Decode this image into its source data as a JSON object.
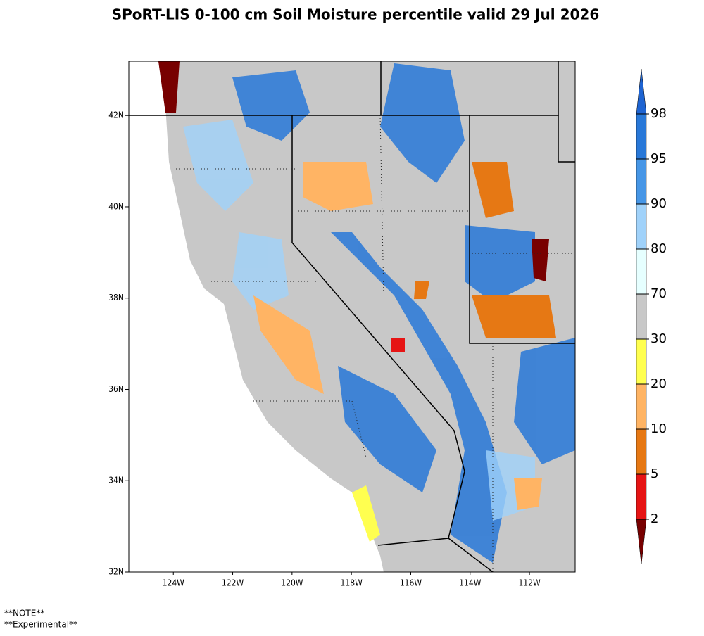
{
  "title": "SPoRT-LIS 0-100 cm Soil Moisture percentile valid 29 Jul 2026",
  "map": {
    "lat_range": [
      32,
      43.19
    ],
    "lon_range": [
      -125.5,
      -110.46
    ],
    "lat_ticks": [
      {
        "value": 32,
        "label": "32N"
      },
      {
        "value": 34,
        "label": "34N"
      },
      {
        "value": 36,
        "label": "36N"
      },
      {
        "value": 38,
        "label": "38N"
      },
      {
        "value": 40,
        "label": "40N"
      },
      {
        "value": 42,
        "label": "42N"
      }
    ],
    "lon_ticks": [
      {
        "value": -124,
        "label": "124W"
      },
      {
        "value": -122,
        "label": "122W"
      },
      {
        "value": -120,
        "label": "120W"
      },
      {
        "value": -118,
        "label": "118W"
      },
      {
        "value": -116,
        "label": "116W"
      },
      {
        "value": -114,
        "label": "114W"
      },
      {
        "value": -112,
        "label": "112W"
      }
    ]
  },
  "colorbar": {
    "levels": [
      2,
      5,
      10,
      20,
      30,
      70,
      80,
      90,
      95,
      98
    ],
    "colors": [
      "#780000",
      "#e61414",
      "#e67814",
      "#ffb464",
      "#ffff50",
      "#c8c8c8",
      "#e6ffff",
      "#a0d2fa",
      "#4696e6",
      "#2878d8",
      "#1e64d2"
    ]
  },
  "notes": [
    "**NOTE**",
    "**Experimental**"
  ]
}
